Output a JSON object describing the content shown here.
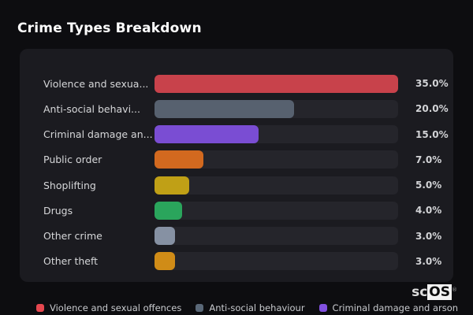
{
  "header": {
    "title": "Crime Types Breakdown"
  },
  "watermark": {
    "prefix": "sc",
    "boxed": "OS",
    "reg": "®"
  },
  "colors": {
    "page_bg": "#0d0d10",
    "panel_bg": "#1b1b20",
    "track_bg": "#25252b",
    "title_text": "#ffffff",
    "label_text": "#d6d7d9",
    "value_text": "#d2d3d6",
    "legend_text": "#c8cace"
  },
  "chart_data": {
    "type": "bar",
    "orientation": "horizontal",
    "title": "Crime Types Breakdown",
    "xlabel": "",
    "ylabel": "",
    "value_unit": "%",
    "scale_max": 35,
    "grid": false,
    "legend_position": "bottom",
    "rows": [
      {
        "label": "Violence and sexua...",
        "value": 35.0,
        "value_label": "35.0%",
        "color": "#c8424b"
      },
      {
        "label": "Anti-social behavi...",
        "value": 20.0,
        "value_label": "20.0%",
        "color": "#57616f"
      },
      {
        "label": "Criminal damage an...",
        "value": 15.0,
        "value_label": "15.0%",
        "color": "#7a4dd3"
      },
      {
        "label": "Public order",
        "value": 7.0,
        "value_label": "7.0%",
        "color": "#d2691f"
      },
      {
        "label": "Shoplifting",
        "value": 5.0,
        "value_label": "5.0%",
        "color": "#c0a016"
      },
      {
        "label": "Drugs",
        "value": 4.0,
        "value_label": "4.0%",
        "color": "#2aa55c"
      },
      {
        "label": "Other crime",
        "value": 3.0,
        "value_label": "3.0%",
        "color": "#8691a3"
      },
      {
        "label": "Other theft",
        "value": 3.0,
        "value_label": "3.0%",
        "color": "#d08c17"
      }
    ],
    "legend": [
      {
        "label": "Violence and sexual offences",
        "color": "#e5474f"
      },
      {
        "label": "Anti-social behaviour",
        "color": "#5a6878"
      },
      {
        "label": "Criminal damage and arson",
        "color": "#8150e0"
      }
    ]
  }
}
